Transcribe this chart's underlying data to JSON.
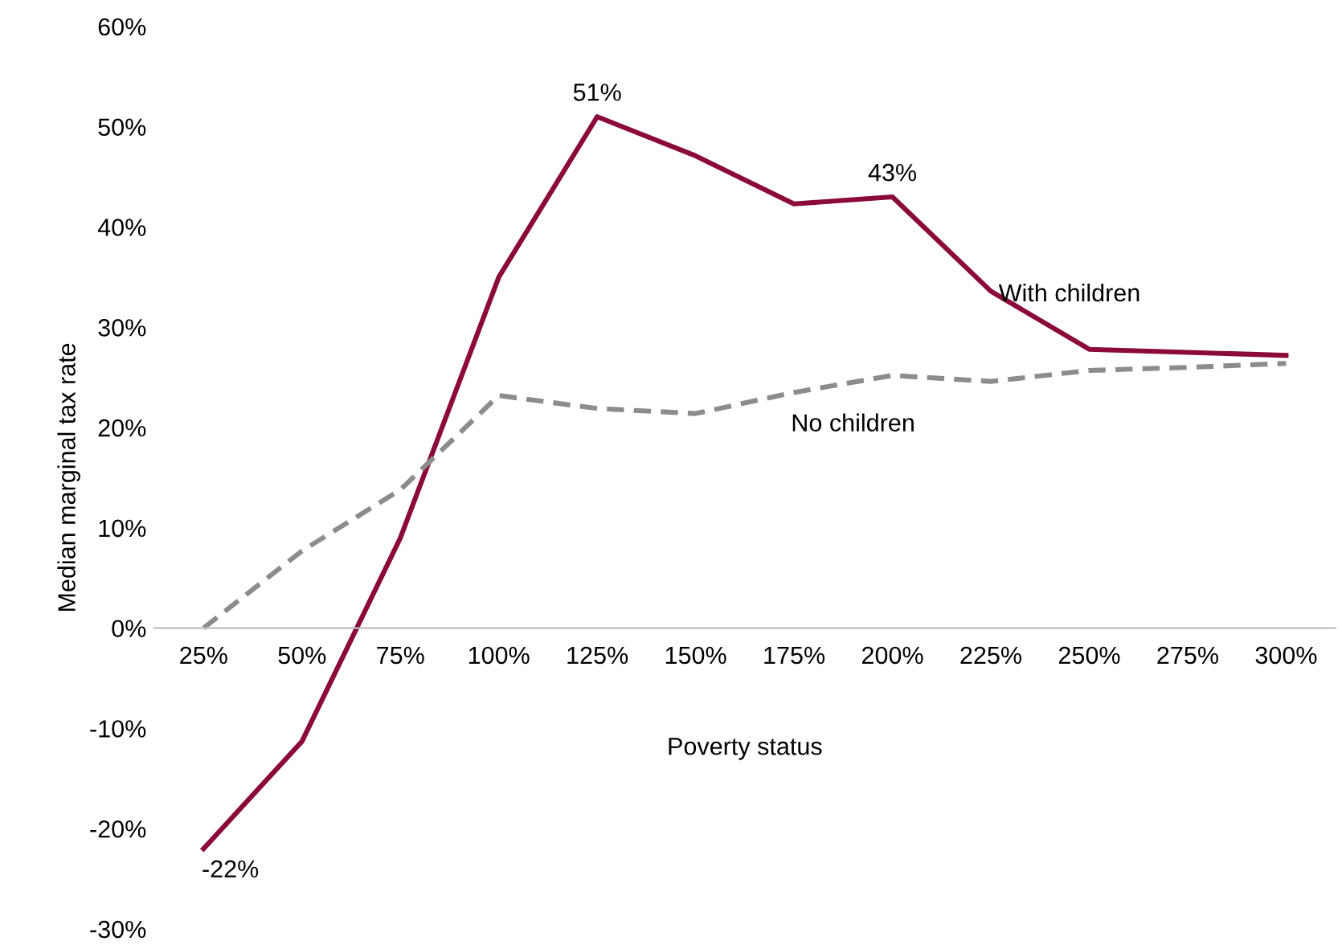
{
  "chart_data": {
    "type": "line",
    "xlabel": "Poverty status",
    "ylabel": "Median marginal tax rate",
    "categories": [
      "25%",
      "50%",
      "75%",
      "100%",
      "125%",
      "150%",
      "175%",
      "200%",
      "225%",
      "250%",
      "275%",
      "300%"
    ],
    "series": [
      {
        "name": "With children",
        "color": "#8b0a3a",
        "line_style": "solid",
        "values": [
          -22,
          -11.3,
          9.0,
          35.0,
          51,
          47.1,
          42.3,
          43,
          33.6,
          27.8,
          27.5,
          27.2
        ],
        "value_labels": [
          "-22%",
          null,
          null,
          null,
          "51%",
          null,
          null,
          "43%",
          null,
          null,
          null,
          null
        ]
      },
      {
        "name": "No children",
        "color": "#8c8c8c",
        "line_style": "dashed",
        "values": [
          0,
          7.7,
          13.8,
          23.2,
          21.9,
          21.4,
          23.5,
          25.2,
          24.6,
          25.7,
          26.0,
          26.4
        ]
      }
    ],
    "ylim": [
      -30,
      60
    ],
    "yticks": [
      {
        "value": -30,
        "label": "-30%"
      },
      {
        "value": -20,
        "label": "-20%"
      },
      {
        "value": -10,
        "label": "-10%"
      },
      {
        "value": 0,
        "label": "0%"
      },
      {
        "value": 10,
        "label": "10%"
      },
      {
        "value": 20,
        "label": "20%"
      },
      {
        "value": 30,
        "label": "30%"
      },
      {
        "value": 40,
        "label": "40%"
      },
      {
        "value": 50,
        "label": "50%"
      },
      {
        "value": 60,
        "label": "60%"
      }
    ],
    "grid": false,
    "legend": false,
    "marker": "none"
  }
}
